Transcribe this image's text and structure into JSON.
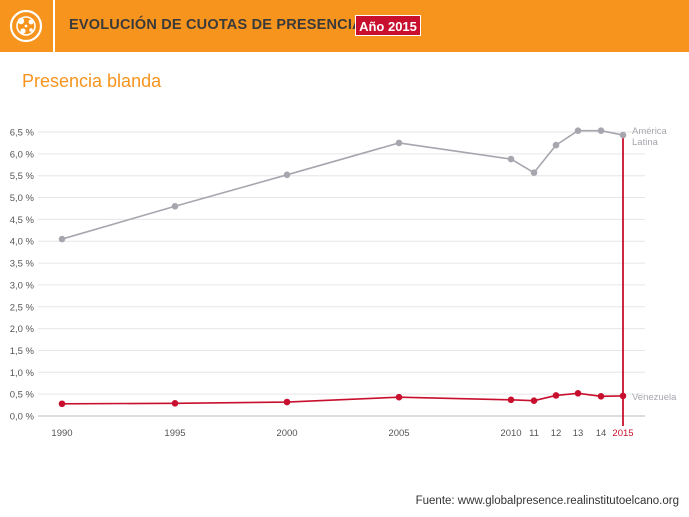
{
  "header": {
    "title": "EVOLUCIÓN DE CUOTAS DE PRESENCIA",
    "year_label": "Año 2015",
    "logo_icon": "globe-dots-icon"
  },
  "subtitle": "Presencia blanda",
  "source": "Fuente: www.globalpresence.realinstitutoelcano.org",
  "colors": {
    "header_bg": "#F7941D",
    "accent_red": "#C8102E",
    "latam_gray": "#A7A6AE",
    "venezuela_red": "#C8102E",
    "grid": "#E6E6E6",
    "axis_text": "#555555"
  },
  "chart_data": {
    "type": "line",
    "title": "Presencia blanda",
    "xlabel": "",
    "ylabel": "",
    "ylim": [
      0,
      6.5
    ],
    "yticks": [
      {
        "value": 0,
        "label": "0,0 %"
      },
      {
        "value": 0.5,
        "label": "0,5 %"
      },
      {
        "value": 1.0,
        "label": "1,0 %"
      },
      {
        "value": 1.5,
        "label": "1,5 %"
      },
      {
        "value": 2.0,
        "label": "2,0 %"
      },
      {
        "value": 2.5,
        "label": "2,5 %"
      },
      {
        "value": 3.0,
        "label": "3,0 %"
      },
      {
        "value": 3.5,
        "label": "3,5 %"
      },
      {
        "value": 4.0,
        "label": "4,0 %"
      },
      {
        "value": 4.5,
        "label": "4,5 %"
      },
      {
        "value": 5.0,
        "label": "5,0 %"
      },
      {
        "value": 5.5,
        "label": "5,5 %"
      },
      {
        "value": 6.0,
        "label": "6,0 %"
      },
      {
        "value": 6.5,
        "label": "6,5 %"
      }
    ],
    "x": [
      1990,
      1995,
      2000,
      2005,
      2010,
      2011,
      2012,
      2013,
      2014,
      2015
    ],
    "xtick_labels": [
      "1990",
      "1995",
      "2000",
      "2005",
      "2010",
      "11",
      "12",
      "13",
      "14",
      "2015"
    ],
    "highlight_year": 2015,
    "series": [
      {
        "name": "América Latina",
        "label_lines": [
          "América",
          "Latina"
        ],
        "color": "#A7A6AE",
        "values": [
          4.05,
          4.8,
          5.52,
          6.25,
          5.88,
          5.57,
          6.2,
          6.53,
          6.53,
          6.43
        ]
      },
      {
        "name": "Venezuela",
        "label_lines": [
          "Venezuela"
        ],
        "color": "#C8102E",
        "values": [
          0.28,
          0.29,
          0.32,
          0.43,
          0.37,
          0.35,
          0.47,
          0.52,
          0.45,
          0.46
        ]
      }
    ]
  }
}
